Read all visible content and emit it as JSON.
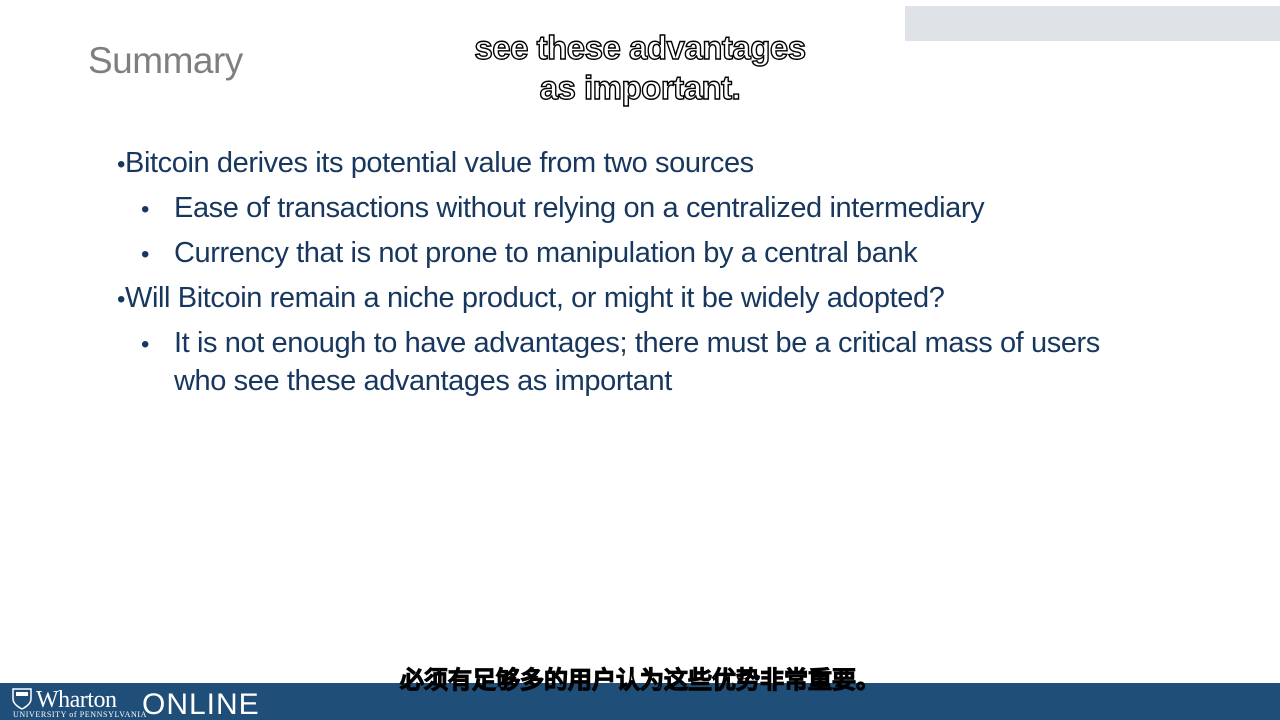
{
  "slide": {
    "title": "Summary",
    "bullets": [
      {
        "text": "Bitcoin derives its potential value from two sources",
        "sub": [
          "Ease of transactions without relying on a centralized intermediary",
          "Currency that is not prone to manipulation by a central bank"
        ]
      },
      {
        "text": "Will Bitcoin remain a niche product, or might it be widely adopted?",
        "sub": [
          "It is not enough to have advantages; there must be a critical mass of users",
          "who see these advantages as important"
        ]
      }
    ]
  },
  "captions": {
    "english_line1": "see these advantages",
    "english_line2": "as important.",
    "chinese": "必须有足够多的用户认为这些优势非常重要。"
  },
  "footer": {
    "brand": "Wharton",
    "brand_sub": "UNIVERSITY of PENNSYLVANIA",
    "online": "ONLINE"
  },
  "colors": {
    "bullet_text": "#17375e",
    "title": "#7f7f7f",
    "footer_bar": "#1f4e79"
  }
}
